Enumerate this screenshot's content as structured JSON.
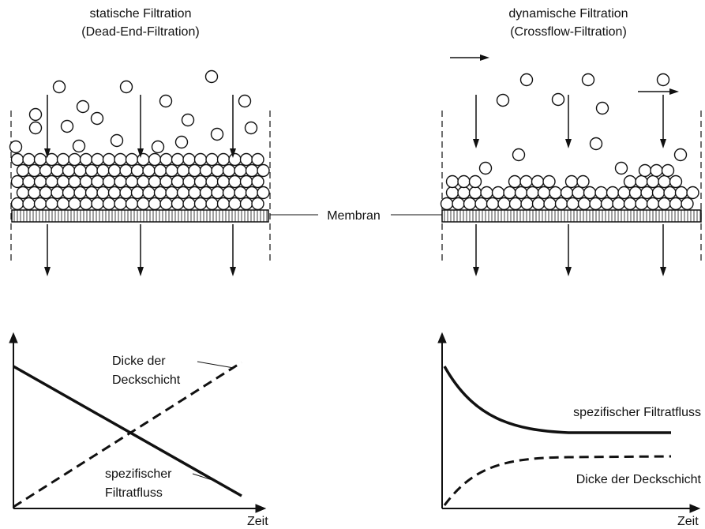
{
  "left": {
    "title": "statische Filtration",
    "subtitle": "(Dead-End-Filtration)",
    "graph": {
      "thickness_label": [
        "Dicke der",
        "Deckschicht"
      ],
      "flux_label": [
        "spezifischer",
        "Filtratfluss"
      ],
      "x_label": "Zeit"
    }
  },
  "membrane_label": "Membran",
  "right": {
    "title": "dynamische Filtration",
    "subtitle": "(Crossflow-Filtration)",
    "graph": {
      "flux_label": "spezifischer Filtratfluss",
      "thickness_label": "Dicke der Deckschicht",
      "x_label": "Zeit"
    }
  }
}
